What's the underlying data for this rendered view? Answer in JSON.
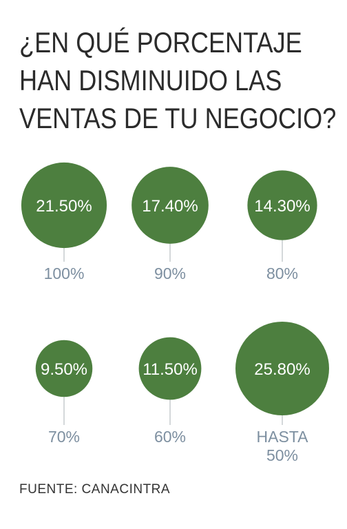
{
  "title_lines": [
    "¿EN QUÉ PORCENTAJE",
    "HAN DISMINUIDO LAS",
    "VENTAS DE TU NEGOCIO?"
  ],
  "source": "FUENTE: CANACINTRA",
  "colors": {
    "bubble": "#4d7f3f",
    "connector": "#c5cacd",
    "category_text": "#7d8fa0",
    "value_text": "#ffffff"
  },
  "chart_data": {
    "type": "bubble",
    "title": "¿EN QUÉ PORCENTAJE HAN DISMINUIDO LAS VENTAS DE TU NEGOCIO?",
    "categories": [
      "100%",
      "90%",
      "80%",
      "70%",
      "60%",
      "HASTA 50%"
    ],
    "values": [
      21.5,
      17.4,
      14.3,
      9.5,
      11.5,
      25.8
    ],
    "value_labels": [
      "21.50%",
      "17.40%",
      "14.30%",
      "9.50%",
      "11.50%",
      "25.80%"
    ],
    "category_label_lines": [
      [
        "100%"
      ],
      [
        "90%"
      ],
      [
        "80%"
      ],
      [
        "70%"
      ],
      [
        "60%"
      ],
      [
        "HASTA",
        "50%"
      ]
    ],
    "layout": "grid 3 columns x 2 rows",
    "source": "FUENTE: CANACINTRA"
  }
}
